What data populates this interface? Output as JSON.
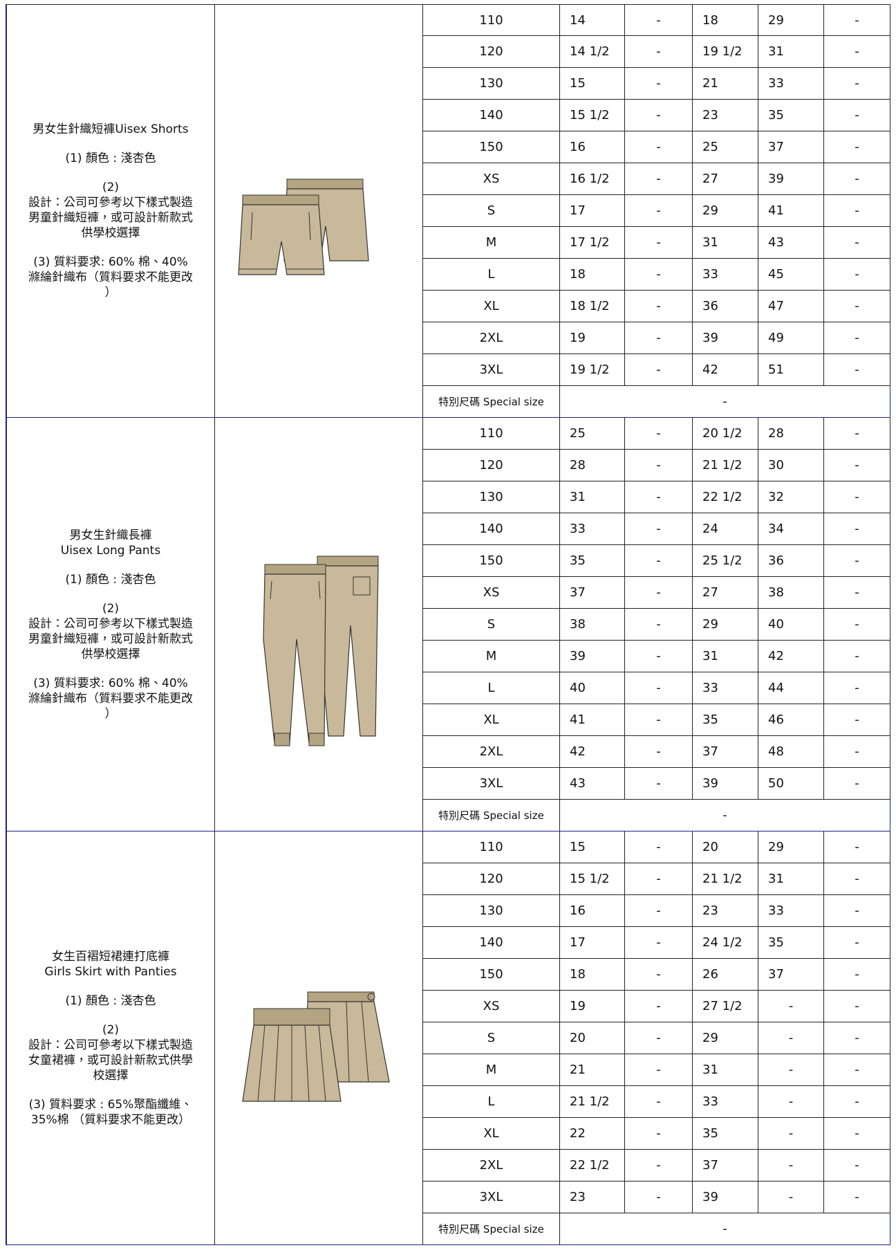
{
  "products": [
    {
      "description": [
        [
          "男女生針織短褲Uisex Shorts"
        ],
        [
          "(1) 顏色 : 淺杏色"
        ],
        [
          "(2)",
          "設計：公司可參考以下樣式製造",
          "男童針織短褲，或可設計新款式",
          "供學校選擇"
        ],
        [
          "(3) 質料要求: 60% 棉、40%",
          "滌綸針織布（質料要求不能更改",
          "）"
        ]
      ],
      "rows": [
        [
          "110",
          "14",
          "-",
          "18",
          "29",
          "-"
        ],
        [
          "120",
          "14 1/2",
          "-",
          "19 1/2",
          "31",
          "-"
        ],
        [
          "130",
          "15",
          "-",
          "21",
          "33",
          "-"
        ],
        [
          "140",
          "15 1/2",
          "-",
          "23",
          "35",
          "-"
        ],
        [
          "150",
          "16",
          "-",
          "25",
          "37",
          "-"
        ],
        [
          "XS",
          "16 1/2",
          "-",
          "27",
          "39",
          "-"
        ],
        [
          "S",
          "17",
          "-",
          "29",
          "41",
          "-"
        ],
        [
          "M",
          "17 1/2",
          "-",
          "31",
          "43",
          "-"
        ],
        [
          "L",
          "18",
          "-",
          "33",
          "45",
          "-"
        ],
        [
          "XL",
          "18 1/2",
          "-",
          "36",
          "47",
          "-"
        ],
        [
          "2XL",
          "19",
          "-",
          "39",
          "49",
          "-"
        ],
        [
          "3XL",
          "19 1/2",
          "-",
          "42",
          "51",
          "-"
        ]
      ],
      "special": {
        "label": "特別尺碼  Special size",
        "value": "-"
      }
    },
    {
      "description": [
        [
          "男女生針織長褲",
          "Uisex Long Pants"
        ],
        [
          "(1) 顏色 : 淺杏色"
        ],
        [
          "(2)",
          "設計：公司可參考以下樣式製造",
          "男童針織短褲，或可設計新款式",
          "供學校選擇"
        ],
        [
          "(3) 質料要求: 60% 棉、40%",
          "滌綸針織布（質料要求不能更改",
          "）"
        ]
      ],
      "rows": [
        [
          "110",
          "25",
          "-",
          "20 1/2",
          "28",
          "-"
        ],
        [
          "120",
          "28",
          "-",
          "21 1/2",
          "30",
          "-"
        ],
        [
          "130",
          "31",
          "-",
          "22 1/2",
          "32",
          "-"
        ],
        [
          "140",
          "33",
          "-",
          "24",
          "34",
          "-"
        ],
        [
          "150",
          "35",
          "-",
          "25 1/2",
          "36",
          "-"
        ],
        [
          "XS",
          "37",
          "-",
          "27",
          "38",
          "-"
        ],
        [
          "S",
          "38",
          "-",
          "29",
          "40",
          "-"
        ],
        [
          "M",
          "39",
          "-",
          "31",
          "42",
          "-"
        ],
        [
          "L",
          "40",
          "-",
          "33",
          "44",
          "-"
        ],
        [
          "XL",
          "41",
          "-",
          "35",
          "46",
          "-"
        ],
        [
          "2XL",
          "42",
          "-",
          "37",
          "48",
          "-"
        ],
        [
          "3XL",
          "43",
          "-",
          "39",
          "50",
          "-"
        ]
      ],
      "special": {
        "label": "特別尺碼  Special size",
        "value": "-"
      }
    },
    {
      "description": [
        [
          "女生百褶短裙連打底褲",
          "Girls Skirt with Panties"
        ],
        [
          "(1) 顏色 : 淺杏色"
        ],
        [
          "(2)",
          "設計：公司可參考以下樣式製造",
          "女童裙褲，或可設計新款式供學",
          "校選擇"
        ],
        [
          "(3) 質料要求 : 65%聚酯纖維、",
          "35%棉 （質料要求不能更改）"
        ]
      ],
      "rows": [
        [
          "110",
          "15",
          "-",
          "20",
          "29",
          "-"
        ],
        [
          "120",
          "15 1/2",
          "-",
          "21 1/2",
          "31",
          "-"
        ],
        [
          "130",
          "16",
          "-",
          "23",
          "33",
          "-"
        ],
        [
          "140",
          "17",
          "-",
          "24 1/2",
          "35",
          "-"
        ],
        [
          "150",
          "18",
          "-",
          "26",
          "37",
          "-"
        ],
        [
          "XS",
          "19",
          "-",
          "27 1/2",
          "-",
          "-"
        ],
        [
          "S",
          "20",
          "-",
          "29",
          "-",
          "-"
        ],
        [
          "M",
          "21",
          "-",
          "31",
          "-",
          "-"
        ],
        [
          "L",
          "21 1/2",
          "-",
          "33",
          "-",
          "-"
        ],
        [
          "XL",
          "22",
          "-",
          "35",
          "-",
          "-"
        ],
        [
          "2XL",
          "22 1/2",
          "-",
          "37",
          "-",
          "-"
        ],
        [
          "3XL",
          "23",
          "-",
          "39",
          "-",
          "-"
        ]
      ],
      "special": {
        "label": "特別尺碼  Special size",
        "value": "-"
      }
    }
  ]
}
